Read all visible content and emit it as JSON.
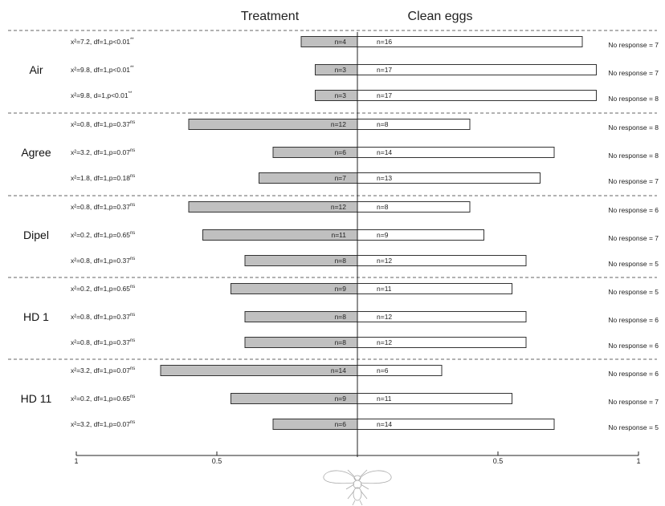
{
  "chart_data": {
    "type": "bar",
    "orientation": "horizontal-diverging",
    "left_header": "Treatment",
    "right_header": "Clean eggs",
    "xlim": [
      -1,
      1
    ],
    "x_ticks": [
      {
        "value": -1,
        "label": "1"
      },
      {
        "value": -0.5,
        "label": "0.5"
      },
      {
        "value": 0.5,
        "label": "0.5"
      },
      {
        "value": 1,
        "label": "1"
      }
    ],
    "colors": {
      "treatment": "#c0c0c0",
      "clean": "#ffffff",
      "stroke": "#333333"
    },
    "groups": [
      {
        "name": "Air",
        "rows": [
          {
            "stat": "x²=7.2, df=1,p<0.01",
            "sig": "**",
            "treatment": 4,
            "clean": 16,
            "treatment_label": "n=4",
            "clean_label": "n=16",
            "no_response": "No response = 7"
          },
          {
            "stat": "x²=9.8, df=1,p<0.01",
            "sig": "**",
            "treatment": 3,
            "clean": 17,
            "treatment_label": "n=3",
            "clean_label": "n=17",
            "no_response": "No response = 7"
          },
          {
            "stat": "x²=9.8, d=1,p<0.01",
            "sig": "**",
            "treatment": 3,
            "clean": 17,
            "treatment_label": "n=3",
            "clean_label": "n=17",
            "no_response": "No response = 8"
          }
        ]
      },
      {
        "name": "Agree",
        "rows": [
          {
            "stat": "x²=0.8, df=1,p=0.37",
            "sig": "ns",
            "treatment": 12,
            "clean": 8,
            "treatment_label": "n=12",
            "clean_label": "n=8",
            "no_response": "No response = 8"
          },
          {
            "stat": "x²=3.2, df=1,p=0.07",
            "sig": "ns",
            "treatment": 6,
            "clean": 14,
            "treatment_label": "n=6",
            "clean_label": "n=14",
            "no_response": "No response = 8"
          },
          {
            "stat": "x²=1.8, df=1,p=0.18",
            "sig": "ns",
            "treatment": 7,
            "clean": 13,
            "treatment_label": "n=7",
            "clean_label": "n=13",
            "no_response": "No response = 7"
          }
        ]
      },
      {
        "name": "Dipel",
        "rows": [
          {
            "stat": "x²=0.8, df=1,p=0.37",
            "sig": "ns",
            "treatment": 12,
            "clean": 8,
            "treatment_label": "n=12",
            "clean_label": "n=8",
            "no_response": "No response = 6"
          },
          {
            "stat": "x²=0.2, df=1,p=0.65",
            "sig": "ns",
            "treatment": 11,
            "clean": 9,
            "treatment_label": "n=11",
            "clean_label": "n=9",
            "no_response": "No response = 7"
          },
          {
            "stat": "x²=0.8, df=1,p=0.37",
            "sig": "ns",
            "treatment": 8,
            "clean": 12,
            "treatment_label": "n=8",
            "clean_label": "n=12",
            "no_response": "No response = 5"
          }
        ]
      },
      {
        "name": "HD 1",
        "rows": [
          {
            "stat": "x²=0.2, df=1,p=0.65",
            "sig": "ns",
            "treatment": 9,
            "clean": 11,
            "treatment_label": "n=9",
            "clean_label": "n=11",
            "no_response": "No response = 5"
          },
          {
            "stat": "x²=0.8, df=1,p=0.37",
            "sig": "ns",
            "treatment": 8,
            "clean": 12,
            "treatment_label": "n=8",
            "clean_label": "n=12",
            "no_response": "No response = 6"
          },
          {
            "stat": "x²=0.8, df=1,p=0.37",
            "sig": "ns",
            "treatment": 8,
            "clean": 12,
            "treatment_label": "n=8",
            "clean_label": "n=12",
            "no_response": "No response = 6"
          }
        ]
      },
      {
        "name": "HD 11",
        "rows": [
          {
            "stat": "x²=3.2, df=1,p=0.07",
            "sig": "ns",
            "treatment": 14,
            "clean": 6,
            "treatment_label": "n=14",
            "clean_label": "n=6",
            "no_response": "No response = 6"
          },
          {
            "stat": "x²=0.2, df=1,p=0.65",
            "sig": "ns",
            "treatment": 9,
            "clean": 11,
            "treatment_label": "n=9",
            "clean_label": "n=11",
            "no_response": "No response = 7"
          },
          {
            "stat": "x²=3.2, df=1,p=0.07",
            "sig": "ns",
            "treatment": 6,
            "clean": 14,
            "treatment_label": "n=6",
            "clean_label": "n=14",
            "no_response": "No response = 5"
          }
        ]
      }
    ]
  }
}
